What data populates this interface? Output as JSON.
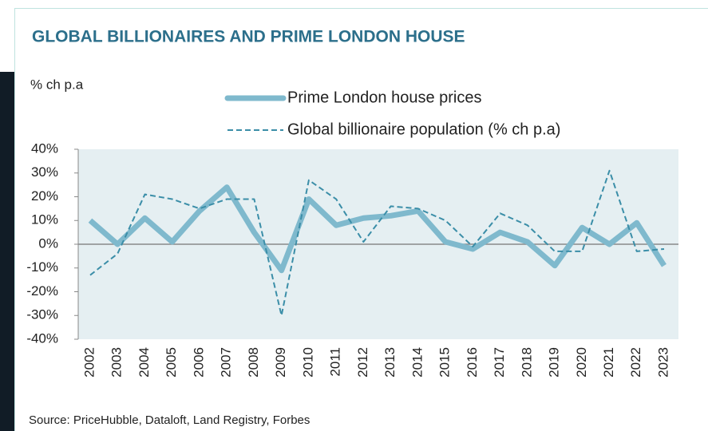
{
  "chart_data": {
    "type": "line",
    "title": "GLOBAL BILLIONAIRES AND PRIME LONDON HOUSE",
    "y_label": "% ch p.a",
    "source": "Source: PriceHubble, Dataloft, Land Registry, Forbes",
    "categories": [
      "2002",
      "2003",
      "2004",
      "2005",
      "2006",
      "2007",
      "2008",
      "2009",
      "2010",
      "2011",
      "2012",
      "2013",
      "2014",
      "2015",
      "2016",
      "2017",
      "2018",
      "2019",
      "2020",
      "2021",
      "2022",
      "2023"
    ],
    "series": [
      {
        "name": "Prime London house prices",
        "color": "#7fb9cd",
        "style": "solid",
        "values": [
          10,
          0,
          11,
          1,
          14,
          24,
          5,
          -11,
          19,
          8,
          11,
          12,
          14,
          1,
          -2,
          5,
          1,
          -9,
          7,
          0,
          9,
          -9
        ]
      },
      {
        "name": "Global billionaire population (% ch p.a)",
        "color": "#3b8ea8",
        "style": "dashed",
        "values": [
          -13,
          -4,
          21,
          19,
          15,
          19,
          19,
          -30,
          27,
          19,
          1,
          16,
          15,
          10,
          -1,
          13,
          8,
          -3,
          -3,
          31,
          -3,
          -2
        ]
      }
    ],
    "ylim": [
      -40,
      40
    ],
    "yticks": [
      {
        "value": -40,
        "label": "-40%"
      },
      {
        "value": -30,
        "label": "-30%"
      },
      {
        "value": -20,
        "label": "-20%"
      },
      {
        "value": -10,
        "label": "-10%"
      },
      {
        "value": 0,
        "label": "0%"
      },
      {
        "value": 10,
        "label": "10%"
      },
      {
        "value": 20,
        "label": "20%"
      },
      {
        "value": 30,
        "label": "30%"
      },
      {
        "value": 40,
        "label": "40%"
      }
    ]
  }
}
